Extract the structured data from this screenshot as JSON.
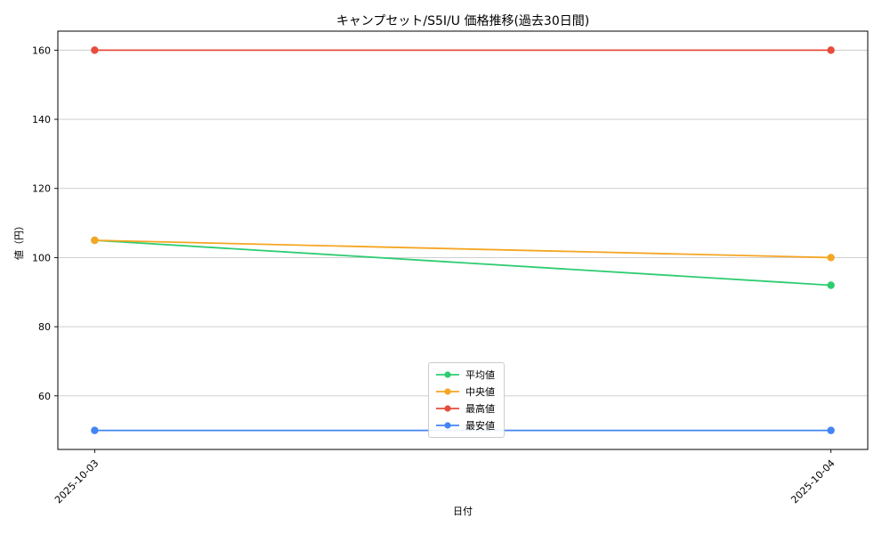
{
  "chart_data": {
    "type": "line",
    "title": "キャンプセット/S5I/U 価格推移(過去30日間)",
    "xlabel": "日付",
    "ylabel": "値（円）",
    "x": [
      "2025-10-03",
      "2025-10-04"
    ],
    "series": [
      {
        "name": "平均値",
        "values": [
          105,
          92
        ],
        "color": "#2ecc71"
      },
      {
        "name": "中央値",
        "values": [
          105,
          100
        ],
        "color": "#f5a623"
      },
      {
        "name": "最高値",
        "values": [
          160,
          160
        ],
        "color": "#e74c3c"
      },
      {
        "name": "最安値",
        "values": [
          50,
          50
        ],
        "color": "#4285f4"
      }
    ],
    "ylim": [
      44.5,
      165.5
    ],
    "yticks": [
      60,
      80,
      100,
      120,
      140,
      160
    ],
    "grid": true,
    "legend_position": "lower center",
    "colors": {
      "grid": "#c9c9c9",
      "axis": "#000000",
      "background": "#ffffff"
    }
  }
}
